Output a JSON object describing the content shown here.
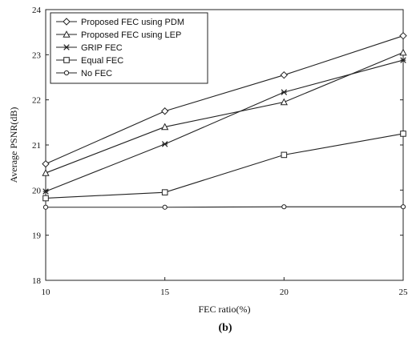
{
  "chart_data": {
    "type": "line",
    "xlabel": "FEC ratio(%)",
    "ylabel": "Average PSNR(dB)",
    "caption": "(b)",
    "x": [
      10,
      15,
      20,
      25
    ],
    "x_ticks": [
      "10",
      "15",
      "20",
      "25"
    ],
    "xlim": [
      10,
      25
    ],
    "ylim": [
      18,
      24
    ],
    "y_ticks": [
      "18",
      "19",
      "20",
      "21",
      "22",
      "23",
      "24"
    ],
    "grid": false,
    "legend_position": "top-left",
    "series": [
      {
        "name": "Proposed FEC using PDM",
        "marker": "diamond",
        "values": [
          20.58,
          21.75,
          22.55,
          23.42
        ]
      },
      {
        "name": "Proposed FEC using LEP",
        "marker": "triangle",
        "values": [
          20.38,
          21.4,
          21.95,
          23.05
        ]
      },
      {
        "name": "GRIP FEC",
        "marker": "star",
        "values": [
          19.97,
          21.02,
          22.17,
          22.88
        ]
      },
      {
        "name": "Equal FEC",
        "marker": "square",
        "values": [
          19.82,
          19.95,
          20.78,
          21.25
        ]
      },
      {
        "name": "No FEC",
        "marker": "circle",
        "values": [
          19.62,
          19.62,
          19.63,
          19.63
        ]
      }
    ]
  }
}
